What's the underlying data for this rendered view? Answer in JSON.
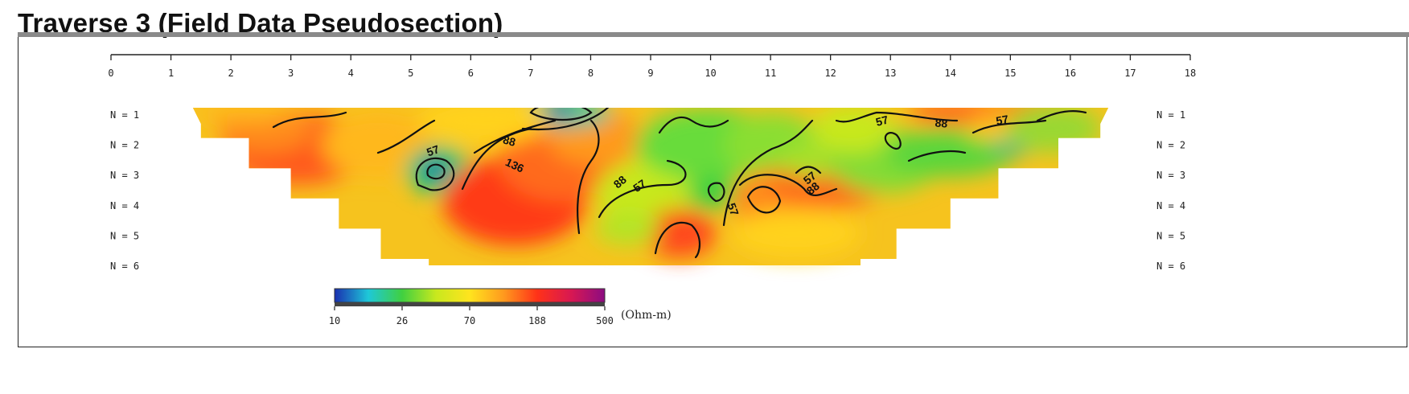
{
  "title": "Traverse 3 (Field Data Pseudosection)",
  "chart_data": {
    "type": "heatmap",
    "title": "Traverse 3 (Field Data Pseudosection)",
    "x_ticks": [
      "0",
      "1",
      "2",
      "3",
      "4",
      "5",
      "6",
      "7",
      "8",
      "9",
      "10",
      "11",
      "12",
      "13",
      "14",
      "15",
      "16",
      "17",
      "18"
    ],
    "xlim": [
      0,
      18
    ],
    "levels": [
      "N = 1",
      "N = 2",
      "N = 3",
      "N = 4",
      "N = 5",
      "N = 6"
    ],
    "level_spans": [
      [
        1.5,
        16.5
      ],
      [
        2.3,
        15.8
      ],
      [
        3.0,
        14.8
      ],
      [
        3.8,
        14.0
      ],
      [
        4.5,
        13.1
      ],
      [
        5.3,
        12.5
      ]
    ],
    "colorbar": {
      "ticks": [
        "10",
        "26",
        "70",
        "188",
        "500"
      ],
      "unit": "(Ohm-m)",
      "colors": [
        "#1a2fb0",
        "#1ec8d8",
        "#40d040",
        "#c8e81e",
        "#ffe41e",
        "#ff9a1e",
        "#ff3218",
        "#d81852",
        "#8c0c82"
      ]
    },
    "contour_labels": [
      "57",
      "88",
      "136",
      "88",
      "57",
      "57",
      "57",
      "88",
      "57",
      "88",
      "57"
    ]
  }
}
